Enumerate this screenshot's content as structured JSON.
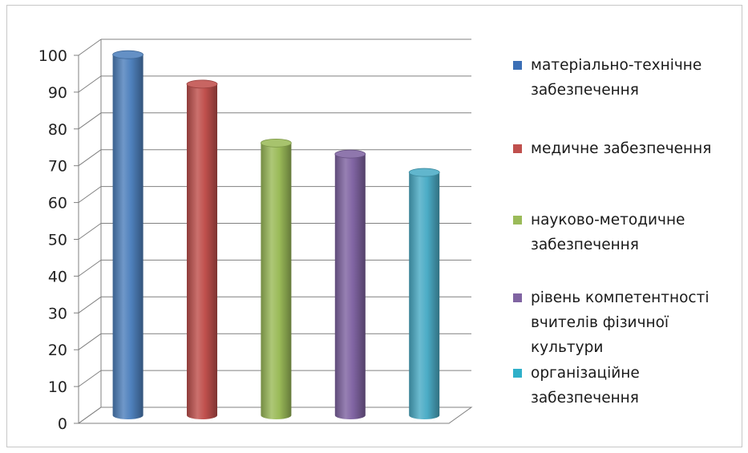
{
  "chart_data": {
    "type": "bar",
    "categories": [
      "матеріально-технічне забезпечення",
      "медичне забезпечення",
      "науково-методичне забезпечення",
      "рівень компетентності вчителів фізичної культури",
      "організаційне забезпечення"
    ],
    "values": [
      98,
      90,
      74,
      71,
      66
    ],
    "ylim": [
      0,
      100
    ],
    "yticks": [
      "0",
      "10",
      "20",
      "30",
      "40",
      "50",
      "60",
      "70",
      "80",
      "90",
      "100"
    ],
    "grid": true,
    "legend_position": "right",
    "colors": [
      "#4f81bd",
      "#c0504d",
      "#9bbb59",
      "#8064a2",
      "#4bacc6"
    ],
    "title": "",
    "xlabel": "",
    "ylabel": ""
  },
  "legend": {
    "items": [
      {
        "label": "матеріально-технічне\nзабезпечення",
        "color": "#3b6fb6"
      },
      {
        "label": "медичне забезпечення",
        "color": "#c0504d"
      },
      {
        "label": "науково-методичне\nзабезпечення",
        "color": "#9bbb59"
      },
      {
        "label": "рівень компетентності\nвчителів фізичної\nкультури",
        "color": "#8064a2"
      },
      {
        "label": "організаційне\nзабезпечення",
        "color": "#2fb0c9"
      }
    ]
  }
}
